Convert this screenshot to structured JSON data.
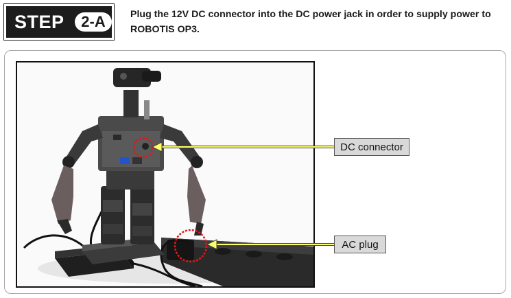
{
  "step": {
    "word": "STEP",
    "number": "2-A"
  },
  "instruction": "Plug the 12V DC connector into the DC power jack in order to supply power to ROBOTIS OP3.",
  "callouts": {
    "dc_connector": "DC connector",
    "ac_plug": "AC plug"
  },
  "colors": {
    "badge": "#1c1c1c",
    "callout_fill": "#d9d9d9",
    "arrow_fill": "#ffff66",
    "highlight_circle": "#e01919",
    "panel_border": "#a7a7a7"
  }
}
